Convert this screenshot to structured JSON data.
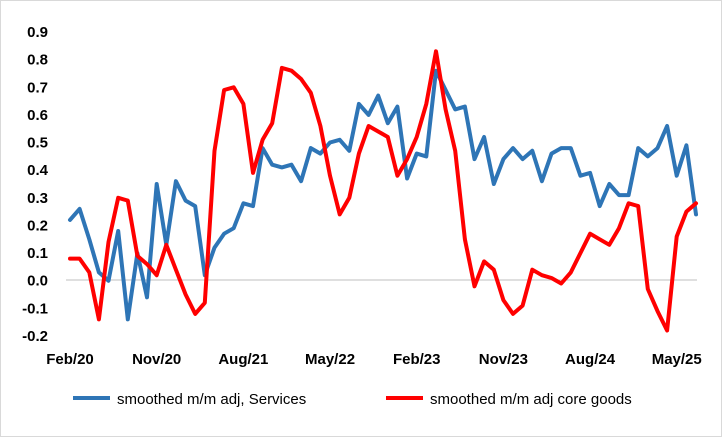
{
  "chart_data": {
    "type": "line",
    "title": "",
    "xlabel": "",
    "ylabel": "",
    "ylim": [
      -0.2,
      0.9
    ],
    "yticks": [
      "0.9",
      "0.8",
      "0.7",
      "0.6",
      "0.5",
      "0.4",
      "0.3",
      "0.2",
      "0.1",
      "0.0",
      "-0.1",
      "-0.2"
    ],
    "ytick_values": [
      0.9,
      0.8,
      0.7,
      0.6,
      0.5,
      0.4,
      0.3,
      0.2,
      0.1,
      0.0,
      -0.1,
      -0.2
    ],
    "x_start": "Feb/20",
    "x_end": "Jun/25",
    "xticks": [
      "Feb/20",
      "Nov/20",
      "Aug/21",
      "May/22",
      "Feb/23",
      "Nov/23",
      "Aug/24",
      "May/25"
    ],
    "xtick_index": [
      0,
      9,
      18,
      27,
      36,
      45,
      54,
      63
    ],
    "grid": false,
    "legend_position": "bottom",
    "series": [
      {
        "name": "smoothed m/m adj, Services",
        "color": "#2e75b6",
        "values": [
          0.22,
          0.26,
          0.15,
          0.03,
          0.0,
          0.18,
          -0.14,
          0.1,
          -0.06,
          0.35,
          0.13,
          0.36,
          0.29,
          0.27,
          0.02,
          0.12,
          0.17,
          0.19,
          0.28,
          0.27,
          0.48,
          0.42,
          0.41,
          0.42,
          0.36,
          0.48,
          0.46,
          0.5,
          0.51,
          0.47,
          0.64,
          0.6,
          0.67,
          0.57,
          0.63,
          0.37,
          0.46,
          0.45,
          0.76,
          0.69,
          0.62,
          0.63,
          0.44,
          0.52,
          0.35,
          0.44,
          0.48,
          0.44,
          0.47,
          0.36,
          0.46,
          0.48,
          0.48,
          0.38,
          0.39,
          0.27,
          0.35,
          0.31,
          0.31,
          0.48,
          0.45,
          0.48,
          0.56,
          0.38,
          0.49,
          0.24
        ]
      },
      {
        "name": "smoothed m/m adj core goods",
        "color": "#ff0000",
        "values": [
          0.08,
          0.08,
          0.03,
          -0.14,
          0.14,
          0.3,
          0.29,
          0.09,
          0.06,
          0.02,
          0.13,
          0.04,
          -0.05,
          -0.12,
          -0.08,
          0.47,
          0.69,
          0.7,
          0.64,
          0.39,
          0.51,
          0.57,
          0.77,
          0.76,
          0.73,
          0.68,
          0.56,
          0.38,
          0.24,
          0.3,
          0.46,
          0.56,
          0.54,
          0.52,
          0.38,
          0.44,
          0.52,
          0.64,
          0.83,
          0.62,
          0.47,
          0.15,
          -0.02,
          0.07,
          0.04,
          -0.07,
          -0.12,
          -0.09,
          0.04,
          0.02,
          0.01,
          -0.01,
          0.03,
          0.1,
          0.17,
          0.15,
          0.13,
          0.19,
          0.28,
          0.27,
          -0.03,
          -0.11,
          -0.18,
          0.16,
          0.25,
          0.28
        ]
      }
    ]
  }
}
